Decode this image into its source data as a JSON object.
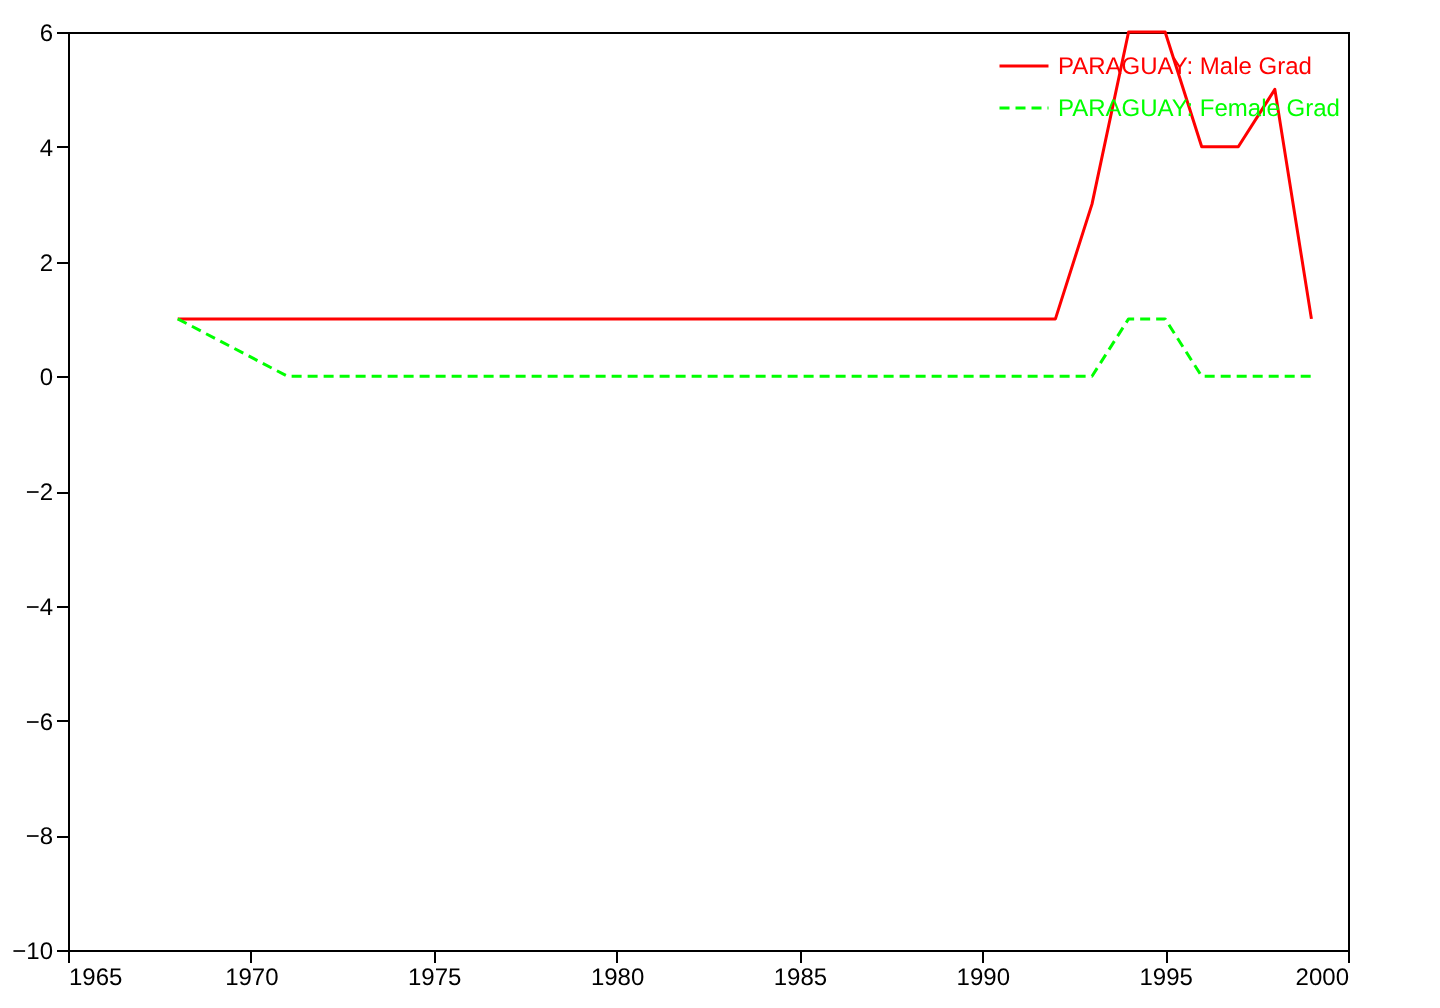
{
  "chart_data": {
    "type": "line",
    "x": [
      1968,
      1971,
      1972,
      1973,
      1974,
      1975,
      1976,
      1977,
      1978,
      1979,
      1980,
      1981,
      1982,
      1983,
      1984,
      1985,
      1986,
      1987,
      1988,
      1989,
      1990,
      1991,
      1992,
      1993,
      1994,
      1995,
      1996,
      1997,
      1998,
      1999
    ],
    "series": [
      {
        "name": "PARAGUAY: Male Grad",
        "color": "#ff0000",
        "line_style": "solid",
        "values": [
          1,
          1,
          1,
          1,
          1,
          1,
          1,
          1,
          1,
          1,
          1,
          1,
          1,
          1,
          1,
          1,
          1,
          1,
          1,
          1,
          1,
          1,
          1,
          3,
          6,
          6,
          4,
          4,
          5,
          1
        ]
      },
      {
        "name": "PARAGUAY: Female Grad",
        "color": "#00ff00",
        "line_style": "dashed",
        "values": [
          1,
          0,
          0,
          0,
          0,
          0,
          0,
          0,
          0,
          0,
          0,
          0,
          0,
          0,
          0,
          0,
          0,
          0,
          0,
          0,
          0,
          0,
          0,
          0,
          1,
          1,
          0,
          0,
          0,
          0
        ]
      }
    ],
    "xlim": [
      1965,
      2000
    ],
    "xticks": [
      1965,
      1970,
      1975,
      1980,
      1985,
      1990,
      1995,
      2000
    ],
    "ylim": [
      -10,
      6
    ],
    "yticks": [
      -10,
      -8,
      -6,
      -4,
      -2,
      0,
      2,
      4,
      6
    ],
    "grid": false,
    "legend": "top right",
    "marker": "none"
  }
}
